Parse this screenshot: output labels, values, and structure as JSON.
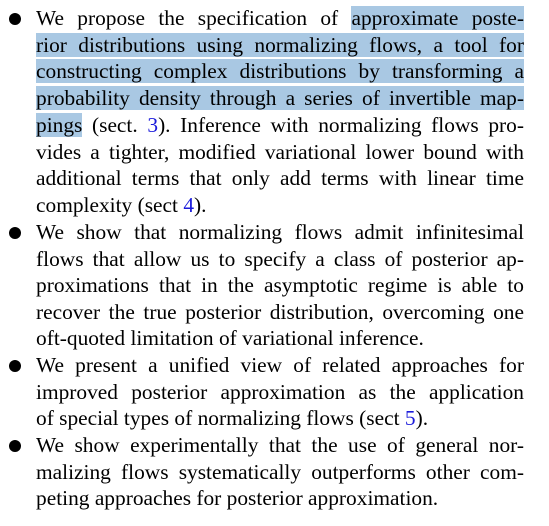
{
  "bullets": [
    {
      "lines": [
        [
          "We propose the specification of ",
          {
            "hl": "approximate poste-"
          }
        ],
        [
          {
            "hl": "rior distributions using normalizing flows, a tool for"
          }
        ],
        [
          {
            "hl": "constructing complex distributions by transforming a"
          }
        ],
        [
          {
            "hl": "probability density through a series of invertible map-"
          }
        ],
        [
          {
            "hl": "pings"
          },
          " (sect. ",
          {
            "ref": "3"
          },
          "). Inference with normalizing flows pro-"
        ],
        [
          "vides a tighter, modified variational lower bound with"
        ],
        [
          "additional terms that only add terms with linear time"
        ],
        [
          "complexity (sect ",
          {
            "ref": "4"
          },
          ")."
        ]
      ]
    },
    {
      "lines": [
        [
          "We show that normalizing flows admit infinitesimal"
        ],
        [
          "flows that allow us to specify a class of posterior ap-"
        ],
        [
          "proximations that in the asymptotic regime is able to"
        ],
        [
          "recover the true posterior distribution, overcoming one"
        ],
        [
          "oft-quoted limitation of variational inference."
        ]
      ]
    },
    {
      "lines": [
        [
          "We present a unified view of related approaches for"
        ],
        [
          "improved posterior approximation as the application"
        ],
        [
          "of special types of normalizing flows (sect ",
          {
            "ref": "5"
          },
          ")."
        ]
      ]
    },
    {
      "lines": [
        [
          "We show experimentally that the use of general nor-"
        ],
        [
          "malizing flows systematically outperforms other com-"
        ],
        [
          "peting approaches for posterior approximation."
        ]
      ]
    }
  ],
  "colors": {
    "highlight": "#a9c8e3",
    "reference_link": "#1a1adb",
    "text": "#000000"
  }
}
